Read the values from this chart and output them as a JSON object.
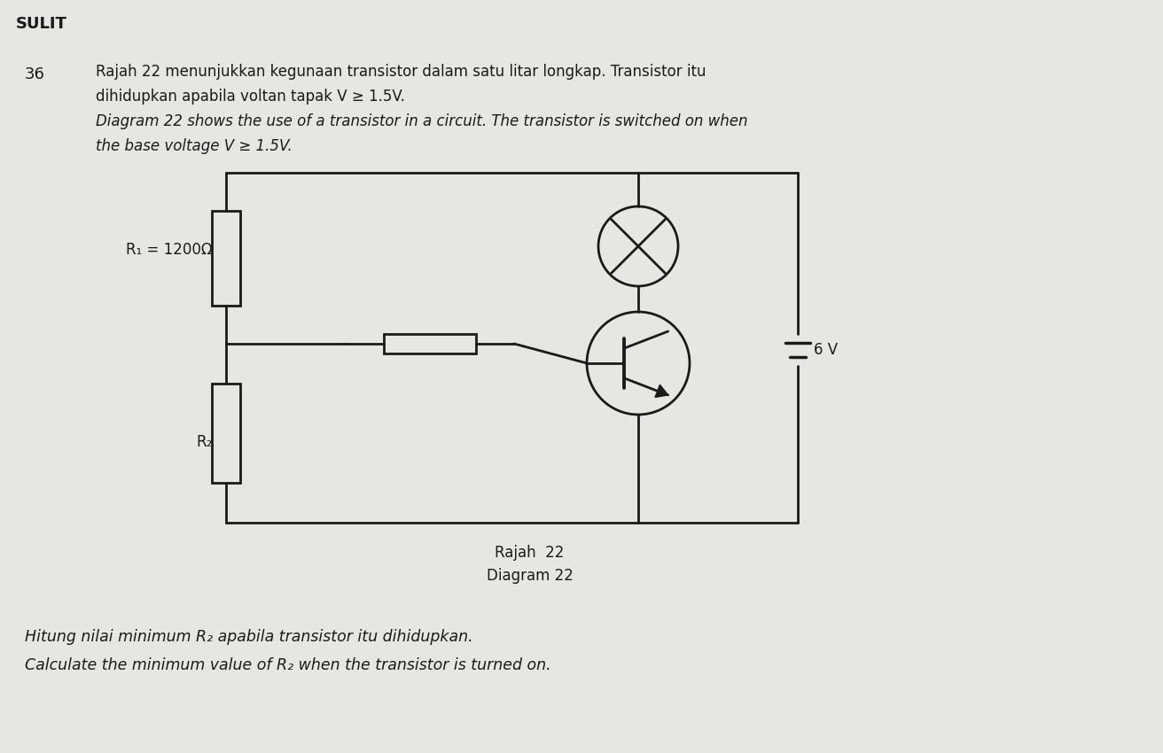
{
  "background_color": "#e8e6e2",
  "title_sulit": "SULIT",
  "question_number": "36",
  "text_line1_ms": "Rajah 22 menunjukkan kegunaan transistor dalam satu litar longkap. Transistor itu",
  "text_line2_ms": "dihidupkan apabila voltan tapak V ≥ 1.5V.",
  "text_line3_en": "Diagram 22 shows the use of a transistor in a circuit. The transistor is switched on when",
  "text_line4_en": "the base voltage V ≥ 1.5V.",
  "label_R1": "R₁ = 1200Ω",
  "label_R2": "R₂",
  "label_6V": "6 V",
  "caption_ms": "Rajah  22",
  "caption_en": "Diagram 22",
  "bottom_line1_ms": "Hitung nilai minimum R₂ apabila transistor itu dihidupkan.",
  "bottom_line1_en": "Calculate the minimum value of R₂ when the transistor is turned on.",
  "circuit_color": "#1a1a1a",
  "text_color": "#1a1a1a"
}
